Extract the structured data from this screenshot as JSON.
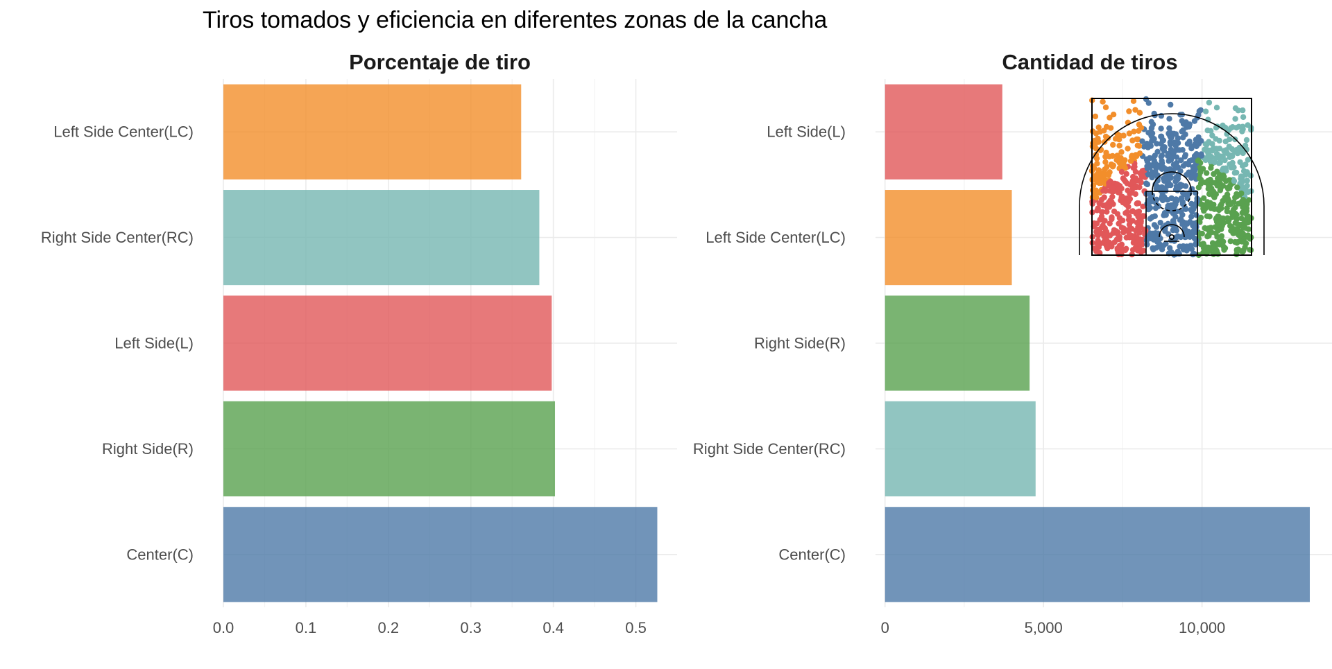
{
  "chart_data": {
    "suptitle": "Tiros tomados y eficiencia en diferentes zonas de la cancha",
    "colors": {
      "Center(C)": "#4e79a7",
      "Right Side(R)": "#59a14f",
      "Left Side(L)": "#e15759",
      "Right Side Center(RC)": "#76b7b2",
      "Left Side Center(LC)": "#f28e2b"
    },
    "panels": [
      {
        "type": "bar",
        "orientation": "horizontal",
        "title": "Porcentaje de tiro",
        "categories": [
          "Left Side Center(LC)",
          "Right Side Center(RC)",
          "Left Side(L)",
          "Right Side(R)",
          "Center(C)"
        ],
        "values": [
          0.361,
          0.383,
          0.398,
          0.402,
          0.526
        ],
        "xlim": [
          0,
          0.55
        ],
        "xticks": [
          0.0,
          0.1,
          0.2,
          0.3,
          0.4,
          0.5
        ],
        "xtick_labels": [
          "0.0",
          "0.1",
          "0.2",
          "0.3",
          "0.4",
          "0.5"
        ],
        "grid": true
      },
      {
        "type": "bar",
        "orientation": "horizontal",
        "title": "Cantidad de tiros",
        "categories": [
          "Left Side(L)",
          "Left Side Center(LC)",
          "Right Side(R)",
          "Right Side Center(RC)",
          "Center(C)"
        ],
        "values": [
          3700,
          4000,
          4560,
          4750,
          13400
        ],
        "xlim": [
          -300,
          14100
        ],
        "xticks": [
          0,
          5000,
          10000
        ],
        "xtick_labels": [
          "0",
          "5,000",
          "10,000"
        ],
        "grid": true
      }
    ],
    "inset": {
      "type": "court-zone-map",
      "zones": [
        "Left Side Center(LC)",
        "Center(C)",
        "Right Side Center(RC)",
        "Left Side(L)",
        "Right Side(R)"
      ]
    }
  }
}
